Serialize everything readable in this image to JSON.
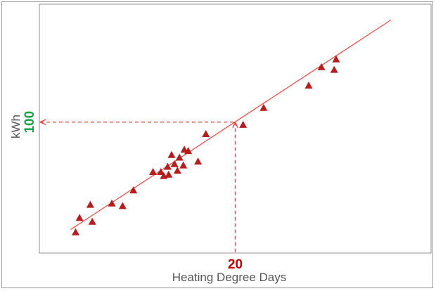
{
  "chart_data": {
    "type": "scatter",
    "xlabel": "Heating Degree Days",
    "ylabel": "kWh",
    "xlim": [
      0,
      40
    ],
    "ylim": [
      0,
      190
    ],
    "grid": false,
    "series": [
      {
        "values": [
          {
            "x": 3.7,
            "y": 16
          },
          {
            "x": 4.1,
            "y": 27
          },
          {
            "x": 5.2,
            "y": 37
          },
          {
            "x": 5.4,
            "y": 24
          },
          {
            "x": 7.4,
            "y": 38
          },
          {
            "x": 8.5,
            "y": 36
          },
          {
            "x": 9.6,
            "y": 48
          },
          {
            "x": 11.6,
            "y": 62
          },
          {
            "x": 12.4,
            "y": 62
          },
          {
            "x": 12.7,
            "y": 59
          },
          {
            "x": 13.1,
            "y": 66
          },
          {
            "x": 13.2,
            "y": 60
          },
          {
            "x": 13.5,
            "y": 75
          },
          {
            "x": 13.8,
            "y": 68
          },
          {
            "x": 14.1,
            "y": 63
          },
          {
            "x": 14.3,
            "y": 73
          },
          {
            "x": 14.7,
            "y": 67
          },
          {
            "x": 14.8,
            "y": 79
          },
          {
            "x": 15.2,
            "y": 78
          },
          {
            "x": 16.2,
            "y": 70
          },
          {
            "x": 17.0,
            "y": 91
          },
          {
            "x": 20.8,
            "y": 98
          },
          {
            "x": 22.9,
            "y": 111
          },
          {
            "x": 27.5,
            "y": 128
          },
          {
            "x": 28.8,
            "y": 142
          },
          {
            "x": 30.1,
            "y": 140
          },
          {
            "x": 30.3,
            "y": 148
          }
        ],
        "color": "#b41e1e"
      }
    ],
    "trendline": {
      "x": [
        3.2,
        35.9
      ],
      "y": [
        18,
        178
      ],
      "color": "#e8504a"
    },
    "callout": {
      "x": 20,
      "y": 100,
      "x_label": "20",
      "y_label": "100",
      "x_label_color": "#c00000",
      "y_label_color": "#1aa34a",
      "line_color": "#e84a4a"
    }
  }
}
